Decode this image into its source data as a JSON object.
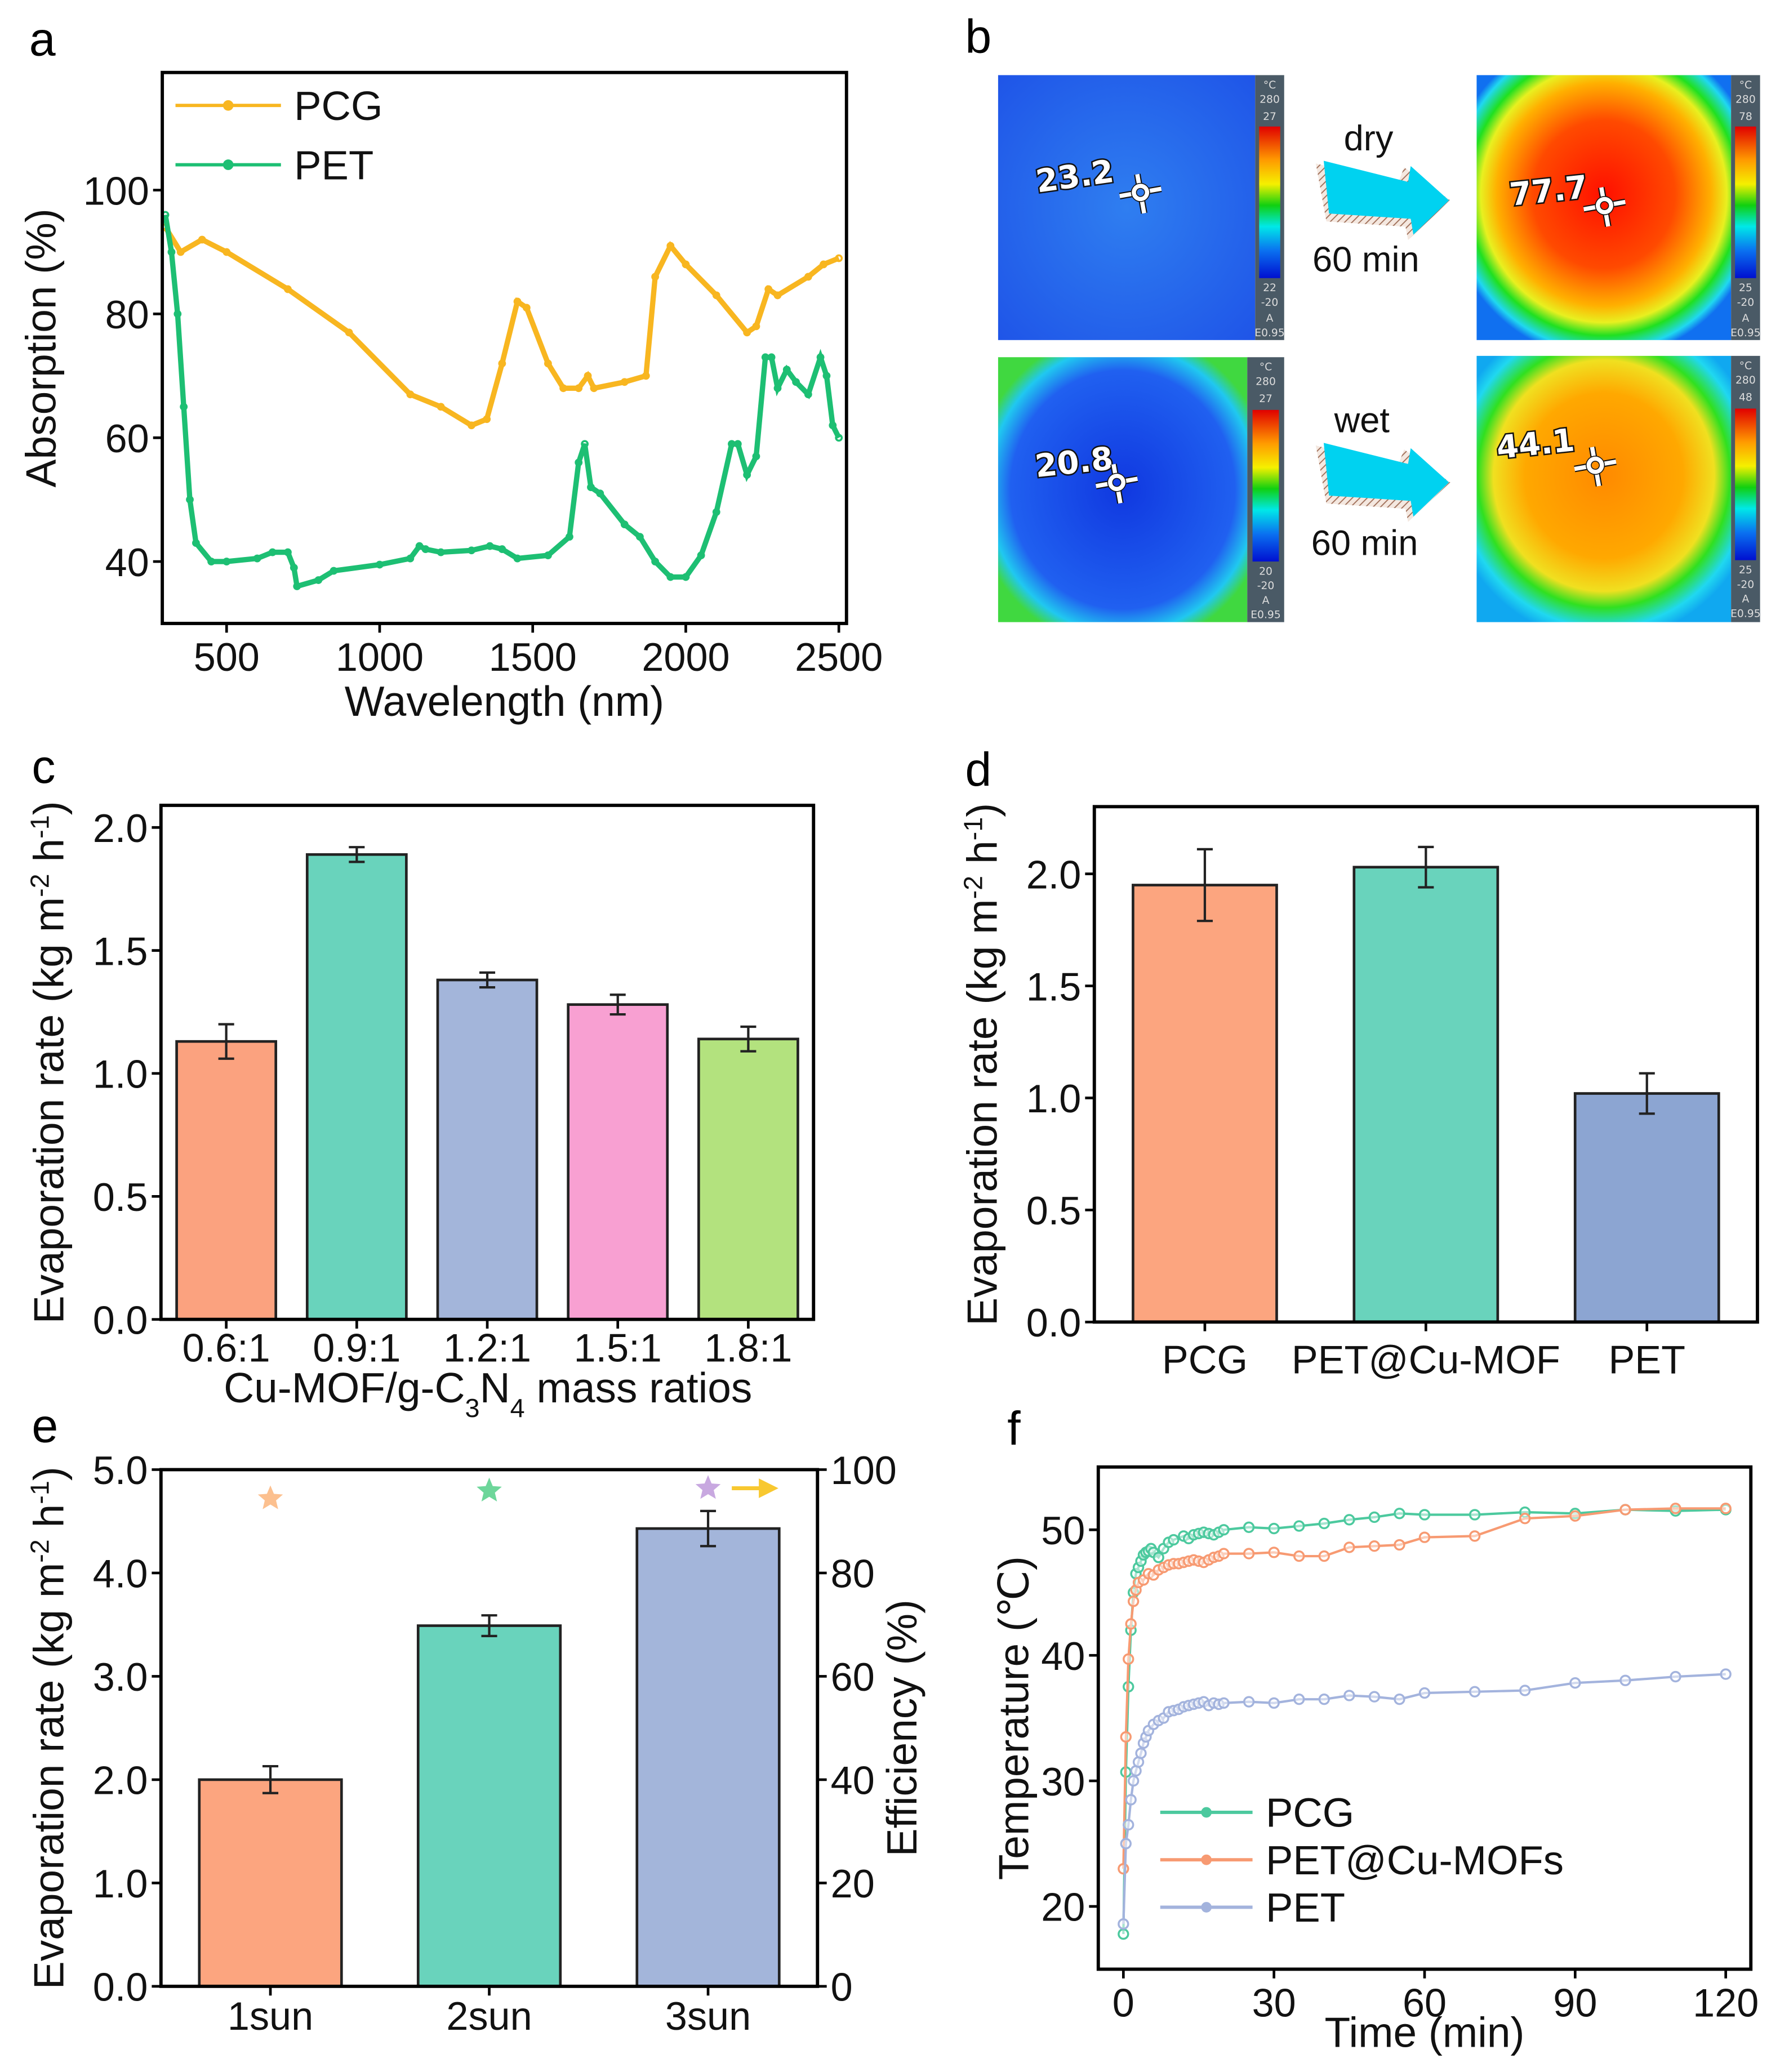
{
  "panels": {
    "a": "a",
    "b": "b",
    "c": "c",
    "d": "d",
    "e": "e",
    "f": "f"
  },
  "thermal_images": {
    "dry": {
      "label": "dry",
      "time": "60 min",
      "before": {
        "reading": "23.2",
        "unit": "°C",
        "range_max": "280",
        "scale_max": "27",
        "scale_min": "22",
        "range_min": "-20",
        "mode": "A",
        "emissivity": "E0.95"
      },
      "after": {
        "reading": "77.7",
        "unit": "°C",
        "range_max": "280",
        "scale_max": "78",
        "scale_min": "25",
        "range_min": "-20",
        "mode": "A",
        "emissivity": "E0.95"
      }
    },
    "wet": {
      "label": "wet",
      "time": "60 min",
      "before": {
        "reading": "20.8",
        "unit": "°C",
        "range_max": "280",
        "scale_max": "27",
        "scale_min": "20",
        "range_min": "-20",
        "mode": "A",
        "emissivity": "E0.95"
      },
      "after": {
        "reading": "44.1",
        "unit": "°C",
        "range_max": "280",
        "scale_max": "48",
        "scale_min": "25",
        "range_min": "-20",
        "mode": "A",
        "emissivity": "E0.95"
      }
    },
    "arrow_color": "#00d2f0"
  },
  "chart_data": [
    {
      "type": "line",
      "xlabel": "Wavelength (nm)",
      "ylabel": "Absorption (%)",
      "xlim": [
        290,
        2525
      ],
      "ylim": [
        30,
        119
      ],
      "xticks": [
        "500",
        "1000",
        "1500",
        "2000",
        "2500"
      ],
      "yticks": [
        "40",
        "60",
        "80",
        "100"
      ],
      "legend": "top-left",
      "series": [
        {
          "name": "PCG",
          "color": "#f8b620",
          "x": [
            300,
            350,
            420,
            500,
            700,
            900,
            1100,
            1200,
            1300,
            1350,
            1400,
            1450,
            1480,
            1550,
            1600,
            1650,
            1680,
            1700,
            1800,
            1870,
            1900,
            1950,
            2000,
            2100,
            2200,
            2230,
            2270,
            2300,
            2400,
            2450,
            2500
          ],
          "y": [
            94,
            90,
            92,
            90,
            84,
            77,
            67,
            65,
            62,
            63,
            72,
            82,
            81,
            72,
            68,
            68,
            70,
            68,
            69,
            70,
            86,
            91,
            88,
            83,
            77,
            78,
            84,
            83,
            86,
            88,
            89
          ]
        },
        {
          "name": "PET",
          "color": "#1dbf73",
          "x": [
            300,
            320,
            340,
            360,
            380,
            400,
            450,
            500,
            600,
            650,
            700,
            720,
            730,
            800,
            850,
            1000,
            1100,
            1130,
            1150,
            1200,
            1300,
            1360,
            1400,
            1450,
            1550,
            1620,
            1650,
            1670,
            1690,
            1720,
            1800,
            1850,
            1900,
            1950,
            2000,
            2050,
            2100,
            2150,
            2170,
            2200,
            2230,
            2260,
            2280,
            2300,
            2330,
            2360,
            2400,
            2440,
            2460,
            2480,
            2500
          ],
          "y": [
            96,
            90,
            80,
            65,
            50,
            43,
            40,
            40,
            40.5,
            41.5,
            41.5,
            39,
            36,
            37,
            38.5,
            39.5,
            40.5,
            42.5,
            42,
            41.5,
            41.8,
            42.5,
            42,
            40.5,
            41,
            44,
            56,
            59,
            52,
            51,
            46,
            44,
            40,
            37.5,
            37.5,
            41,
            48,
            59,
            59,
            54,
            57,
            73,
            73,
            68,
            71,
            69,
            67,
            73,
            70,
            62,
            60
          ]
        }
      ]
    },
    {
      "type": "bar",
      "xlabel_parts": [
        {
          "t": "Cu-MOF/g-C"
        },
        {
          "t": "3",
          "sub": true
        },
        {
          "t": "N"
        },
        {
          "t": "4",
          "sub": true
        },
        {
          "t": " mass ratios"
        }
      ],
      "ylabel_parts": [
        {
          "t": "Evaporation rate (kg m"
        },
        {
          "t": "-2",
          "sup": true
        },
        {
          "t": " h"
        },
        {
          "t": "-1",
          "sup": true
        },
        {
          "t": ")"
        }
      ],
      "categories": [
        "0.6:1",
        "0.9:1",
        "1.2:1",
        "1.5:1",
        "1.8:1"
      ],
      "values": [
        1.13,
        1.89,
        1.38,
        1.28,
        1.14
      ],
      "errors": [
        0.07,
        0.03,
        0.03,
        0.04,
        0.05
      ],
      "colors": [
        "#fba27f",
        "#69d3bc",
        "#a3b5da",
        "#f8a0d2",
        "#b3e27e"
      ],
      "ylim": [
        0,
        2.09
      ],
      "yticks": [
        "0.0",
        "0.5",
        "1.0",
        "1.5",
        "2.0"
      ]
    },
    {
      "type": "bar",
      "ylabel_parts": [
        {
          "t": "Evaporation rate (kg m"
        },
        {
          "t": "-2",
          "sup": true
        },
        {
          "t": " h"
        },
        {
          "t": "-1",
          "sup": true
        },
        {
          "t": ")"
        }
      ],
      "categories": [
        "PCG",
        "PET@Cu-MOF",
        "PET"
      ],
      "values": [
        1.95,
        2.03,
        1.02
      ],
      "errors": [
        0.16,
        0.09,
        0.09
      ],
      "colors": [
        "#fca57f",
        "#69d3bc",
        "#8ca5d2"
      ],
      "ylim": [
        0,
        2.3
      ],
      "yticks": [
        "0.0",
        "0.5",
        "1.0",
        "1.5",
        "2.0"
      ]
    },
    {
      "type": "bar",
      "ylabel_parts": [
        {
          "t": "Evaporation rate (kg m"
        },
        {
          "t": "-2",
          "sup": true
        },
        {
          "t": " h"
        },
        {
          "t": "-1",
          "sup": true
        },
        {
          "t": ")"
        }
      ],
      "y2label": "Efficiency (%)",
      "categories": [
        "1sun",
        "2sun",
        "3sun"
      ],
      "values": [
        2.0,
        3.49,
        4.43
      ],
      "errors": [
        0.13,
        0.1,
        0.17
      ],
      "colors": [
        "#fca57f",
        "#69d3bc",
        "#a3b5da"
      ],
      "efficiency": [
        94.4,
        95.9,
        96.4
      ],
      "star_colors": [
        "#fcc08f",
        "#6dd69a",
        "#c8a8e0"
      ],
      "efficiency_axis_arrow_color": "#f8c830",
      "ylim": [
        0,
        5.0
      ],
      "y2lim": [
        0,
        100
      ],
      "yticks": [
        "0.0",
        "1.0",
        "2.0",
        "3.0",
        "4.0",
        "5.0"
      ],
      "y2ticks": [
        "0",
        "20",
        "40",
        "60",
        "80",
        "100"
      ]
    },
    {
      "type": "line",
      "xlabel": "Time (min)",
      "ylabel": "Temperature (℃)",
      "xlim": [
        -5,
        125
      ],
      "ylim": [
        15,
        55
      ],
      "xticks": [
        "0",
        "30",
        "60",
        "90",
        "120"
      ],
      "yticks": [
        "20",
        "30",
        "40",
        "50"
      ],
      "legend": "bottom-left",
      "series": [
        {
          "name": "PCG",
          "color": "#4cc99e",
          "x": [
            0,
            0.5,
            1,
            1.5,
            2,
            2.5,
            3,
            3.5,
            4,
            4.5,
            5,
            5.5,
            6,
            7,
            8,
            9,
            10,
            12,
            13,
            14,
            15,
            16,
            17,
            18,
            19,
            20,
            25,
            30,
            35,
            40,
            45,
            50,
            55,
            60,
            70,
            80,
            90,
            100,
            110,
            120
          ],
          "y": [
            17.8,
            30.7,
            37.5,
            42,
            45,
            46.5,
            47,
            47.5,
            48,
            48.2,
            48.3,
            48.5,
            48.2,
            47.8,
            48.5,
            49,
            49.2,
            49.5,
            49.3,
            49.6,
            49.7,
            49.8,
            49.7,
            49.6,
            49.8,
            50,
            50.2,
            50.1,
            50.3,
            50.5,
            50.8,
            51,
            51.3,
            51.2,
            51.2,
            51.4,
            51.3,
            51.6,
            51.5,
            51.6
          ]
        },
        {
          "name": "PET@Cu-MOFs",
          "color": "#f79a72",
          "x": [
            0,
            0.5,
            1,
            1.5,
            2,
            2.5,
            3,
            4,
            5,
            6,
            7,
            8,
            9,
            10,
            11,
            12,
            13,
            14,
            15,
            16,
            17,
            18,
            19,
            20,
            25,
            30,
            35,
            40,
            45,
            50,
            55,
            60,
            70,
            80,
            90,
            100,
            110,
            120
          ],
          "y": [
            23,
            33.5,
            39.7,
            42.5,
            44.3,
            45.2,
            45.8,
            46,
            46.5,
            46.4,
            46.8,
            47,
            47.2,
            47.3,
            47.3,
            47.4,
            47.5,
            47.6,
            47.5,
            47.4,
            47.6,
            47.8,
            47.9,
            48.1,
            48.1,
            48.2,
            47.9,
            47.9,
            48.6,
            48.7,
            48.8,
            49.4,
            49.5,
            50.9,
            51.1,
            51.6,
            51.7,
            51.7
          ]
        },
        {
          "name": "PET",
          "color": "#a3b3dd",
          "x": [
            0,
            0.5,
            1,
            1.5,
            2,
            2.5,
            3,
            3.5,
            4,
            4.5,
            5,
            6,
            7,
            8,
            9,
            10,
            11,
            12,
            13,
            14,
            15,
            16,
            17,
            18,
            19,
            20,
            25,
            30,
            35,
            40,
            45,
            50,
            55,
            60,
            70,
            80,
            90,
            100,
            110,
            120
          ],
          "y": [
            18.6,
            25,
            26.5,
            28.5,
            30,
            30.8,
            31.5,
            32.2,
            33,
            33.5,
            34,
            34.5,
            34.8,
            35,
            35.5,
            35.6,
            35.7,
            35.9,
            36,
            36.1,
            36.2,
            36.3,
            36,
            36.2,
            36.1,
            36.2,
            36.3,
            36.2,
            36.5,
            36.5,
            36.8,
            36.7,
            36.5,
            37,
            37.1,
            37.2,
            37.8,
            38,
            38.3,
            38.5
          ]
        }
      ]
    }
  ]
}
